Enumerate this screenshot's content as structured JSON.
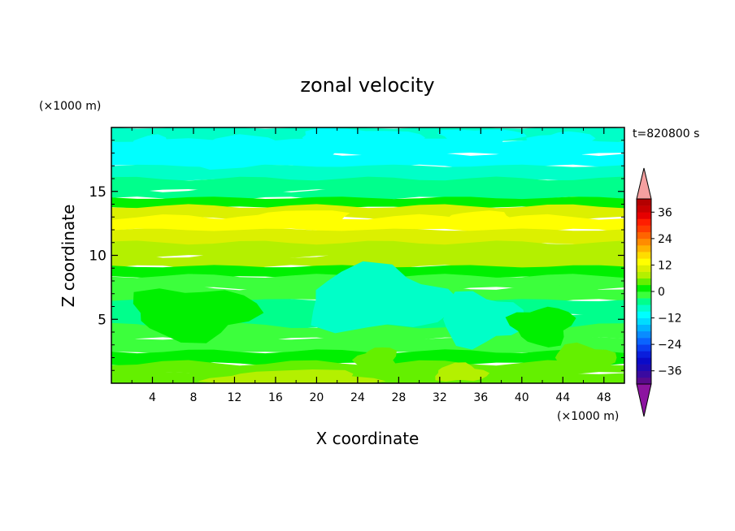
{
  "chart_data": {
    "type": "heatmap",
    "title": "zonal velocity",
    "xlabel": "X coordinate",
    "ylabel": "Z coordinate",
    "x_unit": "(×1000 m)",
    "y_unit": "(×1000 m)",
    "time_label": "t=820800 s",
    "xlim": [
      0,
      50
    ],
    "ylim": [
      0,
      20
    ],
    "x_ticks": [
      "4",
      "8",
      "12",
      "16",
      "20",
      "24",
      "28",
      "32",
      "36",
      "40",
      "44",
      "48"
    ],
    "y_ticks": [
      "5",
      "10",
      "15"
    ],
    "colorbar": {
      "levels": [
        -42,
        -39,
        -36,
        -33,
        -30,
        -27,
        -24,
        -21,
        -18,
        -15,
        -12,
        -9,
        -6,
        -3,
        0,
        3,
        6,
        9,
        12,
        15,
        18,
        21,
        24,
        27,
        30,
        33,
        36,
        39,
        42
      ],
      "colors": [
        "#5a0a8c",
        "#3a0aa0",
        "#1e0ab4",
        "#0a0ac8",
        "#0a1edc",
        "#0a3ef0",
        "#0a64ff",
        "#0a8cff",
        "#00b4ff",
        "#00dcff",
        "#00ffff",
        "#00ffc8",
        "#00ff8c",
        "#3cff3c",
        "#00f000",
        "#64f000",
        "#b4f000",
        "#dcf000",
        "#ffff00",
        "#ffdc00",
        "#ffb400",
        "#ff8c00",
        "#ff6400",
        "#ff3c00",
        "#ff1e00",
        "#e60000",
        "#c80000",
        "#b40000"
      ],
      "under_color": "#8c14a0",
      "over_color": "#f5a0a0",
      "tick_labels": [
        "36",
        "24",
        "12",
        "0",
        "−12",
        "−24",
        "−36"
      ],
      "tick_values": [
        36,
        24,
        12,
        0,
        -12,
        -24,
        -36
      ]
    },
    "bands": [
      {
        "z": 19.5,
        "value": -8
      },
      {
        "z": 18.5,
        "value": -12
      },
      {
        "z": 17.5,
        "value": -11
      },
      {
        "z": 16.5,
        "value": -8
      },
      {
        "z": 15.5,
        "value": -6
      },
      {
        "z": 14.8,
        "value": -4
      },
      {
        "z": 14.2,
        "value": 1
      },
      {
        "z": 13.5,
        "value": 10
      },
      {
        "z": 12.5,
        "value": 13
      },
      {
        "z": 11.5,
        "value": 10
      },
      {
        "z": 10.5,
        "value": 8
      },
      {
        "z": 9.5,
        "value": 6
      },
      {
        "z": 8.8,
        "value": 1
      },
      {
        "z": 8.0,
        "value": -2
      },
      {
        "z": 7.0,
        "value": -3
      },
      {
        "z": 6.0,
        "value": -5
      },
      {
        "z": 5.0,
        "value": -4
      },
      {
        "z": 4.0,
        "value": -3
      },
      {
        "z": 3.0,
        "value": -2
      },
      {
        "z": 2.0,
        "value": 1
      },
      {
        "z": 1.2,
        "value": 3
      },
      {
        "z": 0.4,
        "value": 4
      }
    ],
    "patches": [
      {
        "x": 4,
        "z": 18.5,
        "rx": 2.5,
        "rz": 0.8,
        "value": -12
      },
      {
        "x": 14,
        "z": 18.0,
        "rx": 7,
        "rz": 1.2,
        "value": -12
      },
      {
        "x": 24,
        "z": 19.2,
        "rx": 6,
        "rz": 0.7,
        "value": -12
      },
      {
        "x": 36,
        "z": 19.3,
        "rx": 4,
        "rz": 0.6,
        "value": -12
      },
      {
        "x": 44,
        "z": 18.8,
        "rx": 3,
        "rz": 0.9,
        "value": -12
      },
      {
        "x": 18,
        "z": 12.8,
        "rx": 6,
        "rz": 0.7,
        "value": 14
      },
      {
        "x": 36,
        "z": 12.8,
        "rx": 4,
        "rz": 0.6,
        "value": 13
      },
      {
        "x": 26,
        "z": 6.5,
        "rx": 7,
        "rz": 2.5,
        "value": -8
      },
      {
        "x": 36,
        "z": 5.0,
        "rx": 4,
        "rz": 2.0,
        "value": -7
      },
      {
        "x": 8,
        "z": 5.5,
        "rx": 6,
        "rz": 2.0,
        "value": 0
      },
      {
        "x": 42,
        "z": 4.5,
        "rx": 3,
        "rz": 1.5,
        "value": 1
      },
      {
        "x": 26,
        "z": 1.8,
        "rx": 2,
        "rz": 1.0,
        "value": 4
      },
      {
        "x": 18,
        "z": 0.4,
        "rx": 8,
        "rz": 0.6,
        "value": 7
      },
      {
        "x": 34,
        "z": 0.8,
        "rx": 2.5,
        "rz": 0.7,
        "value": 8
      },
      {
        "x": 46,
        "z": 2.0,
        "rx": 3,
        "rz": 1.0,
        "value": 5
      }
    ]
  }
}
